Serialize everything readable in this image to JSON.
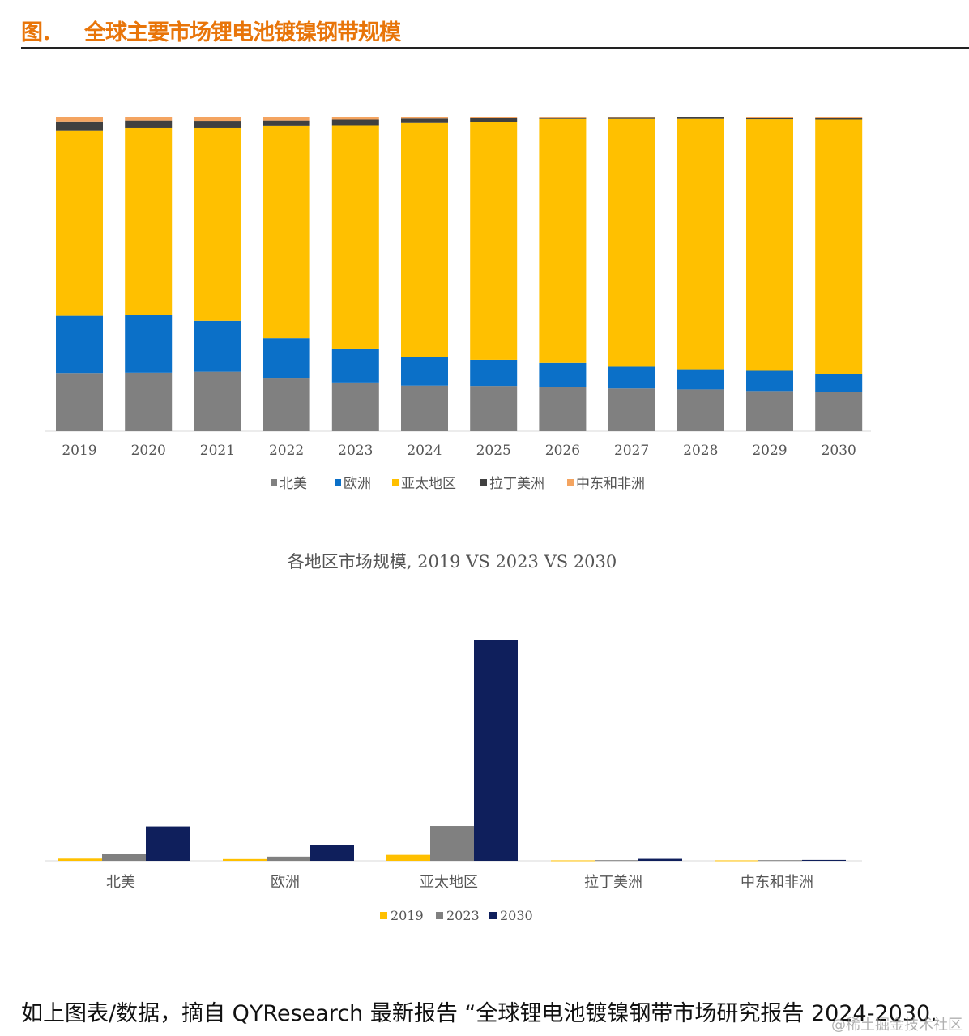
{
  "header": {
    "label": "图.",
    "title": "全球主要市场锂电池镀镍钢带规模"
  },
  "colors": {
    "north_america": "#808080",
    "europe": "#0B70C8",
    "asia_pacific": "#FFC000",
    "latin_america": "#404040",
    "mea": "#F4A460",
    "y2019": "#FFC000",
    "y2023": "#808080",
    "y2030": "#0F1F5C"
  },
  "chart_data": [
    {
      "type": "bar",
      "stacked": "percent",
      "categories": [
        "2019",
        "2020",
        "2021",
        "2022",
        "2023",
        "2024",
        "2025",
        "2026",
        "2027",
        "2028",
        "2029",
        "2030"
      ],
      "series": [
        {
          "name": "北美",
          "color": "#808080",
          "values": [
            18.5,
            18.6,
            18.9,
            17.0,
            15.5,
            14.5,
            14.4,
            14.0,
            13.6,
            13.3,
            12.8,
            12.6
          ]
        },
        {
          "name": "欧洲",
          "color": "#0B70C8",
          "values": [
            18.2,
            18.5,
            16.2,
            12.6,
            10.8,
            9.2,
            8.3,
            7.7,
            6.9,
            6.4,
            6.4,
            5.7
          ]
        },
        {
          "name": "亚太地区",
          "color": "#FFC000",
          "values": [
            59.0,
            59.3,
            61.3,
            67.6,
            71.0,
            74.3,
            75.7,
            77.6,
            78.8,
            79.6,
            80.0,
            80.8
          ]
        },
        {
          "name": "拉丁美洲",
          "color": "#404040",
          "values": [
            2.8,
            2.4,
            2.3,
            1.6,
            1.8,
            1.4,
            1.1,
            0.5,
            0.6,
            0.7,
            0.5,
            0.6
          ]
        },
        {
          "name": "中东和非洲",
          "color": "#F4A460",
          "values": [
            1.5,
            1.2,
            1.3,
            1.2,
            0.9,
            0.6,
            0.5,
            0.2,
            0.1,
            0.0,
            0.3,
            0.3
          ]
        }
      ],
      "legend": "bottom",
      "grid": false
    },
    {
      "type": "bar",
      "title": "各地区市场规模, 2019 VS 2023 VS 2030",
      "categories": [
        "北美",
        "欧洲",
        "亚太地区",
        "拉丁美洲",
        "中东和非洲"
      ],
      "series": [
        {
          "name": "2019",
          "color": "#FFC000",
          "values": [
            1.0,
            0.8,
            2.7,
            0.2,
            0.2
          ]
        },
        {
          "name": "2023",
          "color": "#808080",
          "values": [
            3.0,
            1.9,
            15.8,
            0.3,
            0.3
          ]
        },
        {
          "name": "2030",
          "color": "#0F1F5C",
          "values": [
            15.6,
            7.1,
            100.0,
            0.9,
            0.4
          ]
        }
      ],
      "ylim": [
        0,
        100
      ],
      "legend": "bottom",
      "grid": false
    }
  ],
  "caption": "如上图表/数据，摘自 QYResearch 最新报告 “全球锂电池镀镍钢带市场研究报告 2024-2030.",
  "watermark": "@稀土掘金技术社区"
}
